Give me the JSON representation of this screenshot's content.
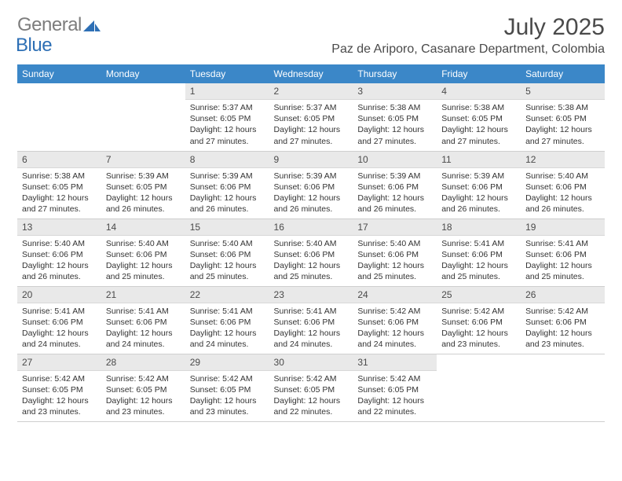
{
  "brand": {
    "word1": "General",
    "word2": "Blue"
  },
  "title": "July 2025",
  "location": "Paz de Ariporo, Casanare Department, Colombia",
  "colors": {
    "header_bg": "#3b87c8",
    "header_text": "#ffffff",
    "daynum_bg": "#e9e9e9",
    "text": "#333333",
    "title_text": "#4a4a4a",
    "logo_gray": "#7d7d7d",
    "logo_blue": "#2d6fb5",
    "border": "#cfcfcf"
  },
  "weekdays": [
    "Sunday",
    "Monday",
    "Tuesday",
    "Wednesday",
    "Thursday",
    "Friday",
    "Saturday"
  ],
  "weeks": [
    [
      {
        "n": "",
        "sr": "",
        "ss": "",
        "dl": ""
      },
      {
        "n": "",
        "sr": "",
        "ss": "",
        "dl": ""
      },
      {
        "n": "1",
        "sr": "Sunrise: 5:37 AM",
        "ss": "Sunset: 6:05 PM",
        "dl": "Daylight: 12 hours and 27 minutes."
      },
      {
        "n": "2",
        "sr": "Sunrise: 5:37 AM",
        "ss": "Sunset: 6:05 PM",
        "dl": "Daylight: 12 hours and 27 minutes."
      },
      {
        "n": "3",
        "sr": "Sunrise: 5:38 AM",
        "ss": "Sunset: 6:05 PM",
        "dl": "Daylight: 12 hours and 27 minutes."
      },
      {
        "n": "4",
        "sr": "Sunrise: 5:38 AM",
        "ss": "Sunset: 6:05 PM",
        "dl": "Daylight: 12 hours and 27 minutes."
      },
      {
        "n": "5",
        "sr": "Sunrise: 5:38 AM",
        "ss": "Sunset: 6:05 PM",
        "dl": "Daylight: 12 hours and 27 minutes."
      }
    ],
    [
      {
        "n": "6",
        "sr": "Sunrise: 5:38 AM",
        "ss": "Sunset: 6:05 PM",
        "dl": "Daylight: 12 hours and 27 minutes."
      },
      {
        "n": "7",
        "sr": "Sunrise: 5:39 AM",
        "ss": "Sunset: 6:05 PM",
        "dl": "Daylight: 12 hours and 26 minutes."
      },
      {
        "n": "8",
        "sr": "Sunrise: 5:39 AM",
        "ss": "Sunset: 6:06 PM",
        "dl": "Daylight: 12 hours and 26 minutes."
      },
      {
        "n": "9",
        "sr": "Sunrise: 5:39 AM",
        "ss": "Sunset: 6:06 PM",
        "dl": "Daylight: 12 hours and 26 minutes."
      },
      {
        "n": "10",
        "sr": "Sunrise: 5:39 AM",
        "ss": "Sunset: 6:06 PM",
        "dl": "Daylight: 12 hours and 26 minutes."
      },
      {
        "n": "11",
        "sr": "Sunrise: 5:39 AM",
        "ss": "Sunset: 6:06 PM",
        "dl": "Daylight: 12 hours and 26 minutes."
      },
      {
        "n": "12",
        "sr": "Sunrise: 5:40 AM",
        "ss": "Sunset: 6:06 PM",
        "dl": "Daylight: 12 hours and 26 minutes."
      }
    ],
    [
      {
        "n": "13",
        "sr": "Sunrise: 5:40 AM",
        "ss": "Sunset: 6:06 PM",
        "dl": "Daylight: 12 hours and 26 minutes."
      },
      {
        "n": "14",
        "sr": "Sunrise: 5:40 AM",
        "ss": "Sunset: 6:06 PM",
        "dl": "Daylight: 12 hours and 25 minutes."
      },
      {
        "n": "15",
        "sr": "Sunrise: 5:40 AM",
        "ss": "Sunset: 6:06 PM",
        "dl": "Daylight: 12 hours and 25 minutes."
      },
      {
        "n": "16",
        "sr": "Sunrise: 5:40 AM",
        "ss": "Sunset: 6:06 PM",
        "dl": "Daylight: 12 hours and 25 minutes."
      },
      {
        "n": "17",
        "sr": "Sunrise: 5:40 AM",
        "ss": "Sunset: 6:06 PM",
        "dl": "Daylight: 12 hours and 25 minutes."
      },
      {
        "n": "18",
        "sr": "Sunrise: 5:41 AM",
        "ss": "Sunset: 6:06 PM",
        "dl": "Daylight: 12 hours and 25 minutes."
      },
      {
        "n": "19",
        "sr": "Sunrise: 5:41 AM",
        "ss": "Sunset: 6:06 PM",
        "dl": "Daylight: 12 hours and 25 minutes."
      }
    ],
    [
      {
        "n": "20",
        "sr": "Sunrise: 5:41 AM",
        "ss": "Sunset: 6:06 PM",
        "dl": "Daylight: 12 hours and 24 minutes."
      },
      {
        "n": "21",
        "sr": "Sunrise: 5:41 AM",
        "ss": "Sunset: 6:06 PM",
        "dl": "Daylight: 12 hours and 24 minutes."
      },
      {
        "n": "22",
        "sr": "Sunrise: 5:41 AM",
        "ss": "Sunset: 6:06 PM",
        "dl": "Daylight: 12 hours and 24 minutes."
      },
      {
        "n": "23",
        "sr": "Sunrise: 5:41 AM",
        "ss": "Sunset: 6:06 PM",
        "dl": "Daylight: 12 hours and 24 minutes."
      },
      {
        "n": "24",
        "sr": "Sunrise: 5:42 AM",
        "ss": "Sunset: 6:06 PM",
        "dl": "Daylight: 12 hours and 24 minutes."
      },
      {
        "n": "25",
        "sr": "Sunrise: 5:42 AM",
        "ss": "Sunset: 6:06 PM",
        "dl": "Daylight: 12 hours and 23 minutes."
      },
      {
        "n": "26",
        "sr": "Sunrise: 5:42 AM",
        "ss": "Sunset: 6:06 PM",
        "dl": "Daylight: 12 hours and 23 minutes."
      }
    ],
    [
      {
        "n": "27",
        "sr": "Sunrise: 5:42 AM",
        "ss": "Sunset: 6:05 PM",
        "dl": "Daylight: 12 hours and 23 minutes."
      },
      {
        "n": "28",
        "sr": "Sunrise: 5:42 AM",
        "ss": "Sunset: 6:05 PM",
        "dl": "Daylight: 12 hours and 23 minutes."
      },
      {
        "n": "29",
        "sr": "Sunrise: 5:42 AM",
        "ss": "Sunset: 6:05 PM",
        "dl": "Daylight: 12 hours and 23 minutes."
      },
      {
        "n": "30",
        "sr": "Sunrise: 5:42 AM",
        "ss": "Sunset: 6:05 PM",
        "dl": "Daylight: 12 hours and 22 minutes."
      },
      {
        "n": "31",
        "sr": "Sunrise: 5:42 AM",
        "ss": "Sunset: 6:05 PM",
        "dl": "Daylight: 12 hours and 22 minutes."
      },
      {
        "n": "",
        "sr": "",
        "ss": "",
        "dl": ""
      },
      {
        "n": "",
        "sr": "",
        "ss": "",
        "dl": ""
      }
    ]
  ]
}
